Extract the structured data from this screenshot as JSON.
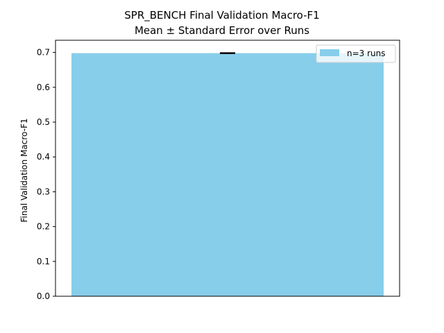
{
  "chart_data": {
    "type": "bar",
    "title": "SPR_BENCH Final Validation Macro-F1",
    "subtitle": "Mean ± Standard Error over Runs",
    "xlabel": "",
    "ylabel": "Final Validation Macro-F1",
    "ylim": [
      0,
      0.7
    ],
    "yticks": [
      0.0,
      0.1,
      0.2,
      0.3,
      0.4,
      0.5,
      0.6,
      0.7
    ],
    "ytick_labels": [
      "0.0",
      "0.1",
      "0.2",
      "0.3",
      "0.4",
      "0.5",
      "0.6",
      "0.7"
    ],
    "categories": [
      ""
    ],
    "series": [
      {
        "name": "n=3 runs",
        "values": [
          0.698
        ],
        "errors": [
          0.001
        ],
        "color": "#87ceeb"
      }
    ],
    "grid": false,
    "legend_position": "top-right"
  }
}
